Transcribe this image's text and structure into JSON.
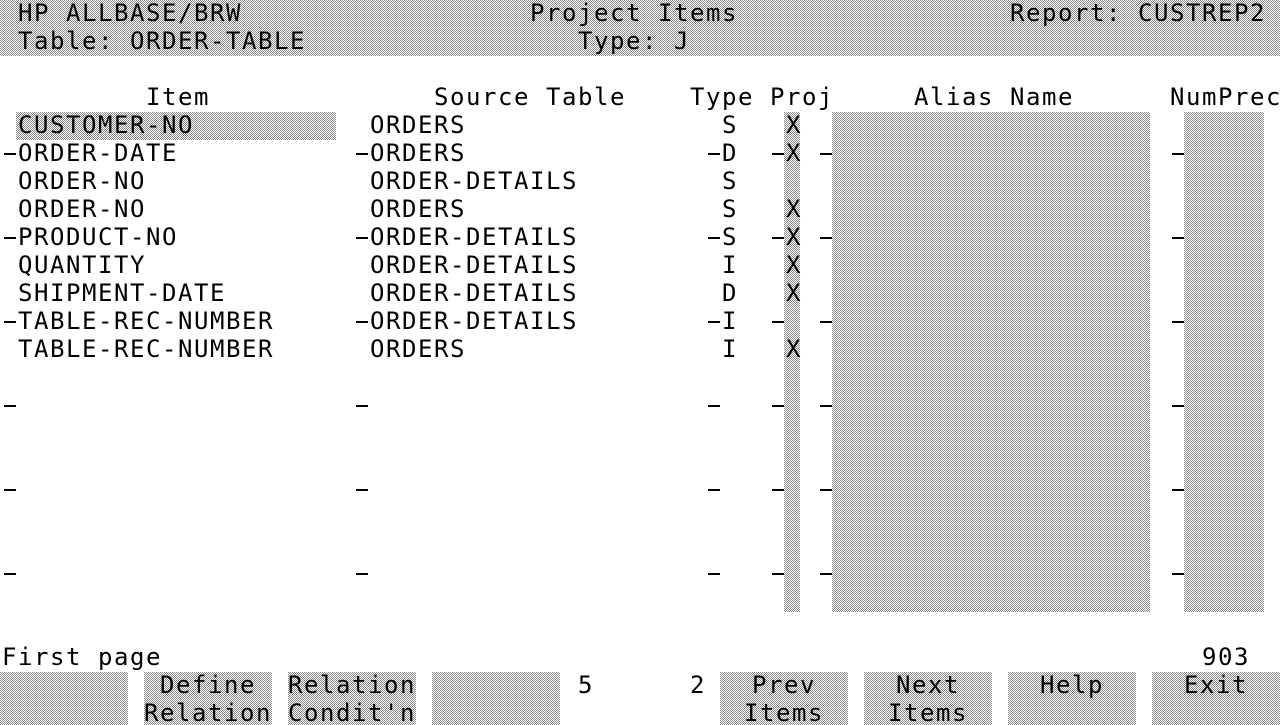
{
  "header": {
    "app": "HP ALLBASE/BRW",
    "title": "Project Items",
    "report": "Report: CUSTREP2",
    "table": "Table: ORDER-TABLE",
    "type": "Type: J"
  },
  "columns": {
    "item": "Item",
    "source": "Source Table",
    "type": "Type",
    "proj": "Proj",
    "alias": "Alias Name",
    "numprec": "NumPrec"
  },
  "rows": [
    {
      "item": "CUSTOMER-NO",
      "source": "ORDERS",
      "type": "S",
      "proj": "X"
    },
    {
      "item": "ORDER-DATE",
      "source": "ORDERS",
      "type": "D",
      "proj": "X"
    },
    {
      "item": "ORDER-NO",
      "source": "ORDER-DETAILS",
      "type": "S"
    },
    {
      "item": "ORDER-NO",
      "source": "ORDERS",
      "type": "S",
      "proj": "X"
    },
    {
      "item": "PRODUCT-NO",
      "source": "ORDER-DETAILS",
      "type": "S",
      "proj": "X"
    },
    {
      "item": "QUANTITY",
      "source": "ORDER-DETAILS",
      "type": "I",
      "proj": "X"
    },
    {
      "item": "SHIPMENT-DATE",
      "source": "ORDER-DETAILS",
      "type": "D",
      "proj": "X"
    },
    {
      "item": "TABLE-REC-NUMBER",
      "source": "ORDER-DETAILS",
      "type": "I"
    },
    {
      "item": "TABLE-REC-NUMBER",
      "source": "ORDERS",
      "type": "I",
      "proj": "X"
    }
  ],
  "footer": {
    "status": "First page",
    "code": "903",
    "count_a": "5",
    "count_b": "2"
  },
  "softkeys": [
    {
      "line1": "Define",
      "line2": "Relation"
    },
    {
      "line1": "Relation",
      "line2": "Condit'n"
    },
    {
      "line1": "Prev",
      "line2": "Items"
    },
    {
      "line1": "Next",
      "line2": "Items"
    },
    {
      "line1": "Help"
    },
    {
      "line1": "Exit"
    }
  ]
}
